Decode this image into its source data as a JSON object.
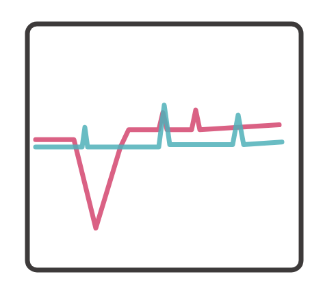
{
  "chart_data": {
    "type": "line",
    "xlim": [
      0,
      100
    ],
    "ylim": [
      0,
      100
    ],
    "grid": false,
    "tick_labels": false,
    "series": [
      {
        "color": "#d4456e",
        "x": [
          3,
          17,
          25,
          34,
          37,
          48,
          49.5,
          51,
          60,
          61.5,
          63,
          92
        ],
        "values": [
          53,
          53,
          17,
          50,
          57,
          57,
          64,
          57,
          57,
          65,
          57,
          59
        ]
      },
      {
        "color": "#4fb0b8",
        "x": [
          3,
          20,
          21,
          22,
          23,
          48,
          50,
          52,
          75,
          77,
          79,
          93
        ],
        "values": [
          50,
          50,
          58,
          50,
          50,
          50,
          67,
          51,
          51,
          63,
          51,
          52
        ]
      }
    ]
  }
}
